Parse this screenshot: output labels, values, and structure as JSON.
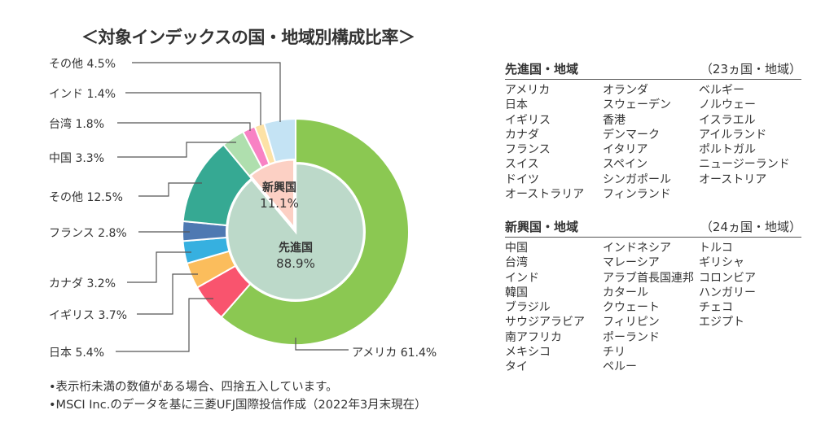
{
  "title": "＜対象インデックスの国・地域別構成比率＞",
  "chart_data": {
    "type": "pie",
    "title": "＜対象インデックスの国・地域別構成比率＞",
    "inner": [
      {
        "name": "先進国",
        "value": 88.9,
        "label": "88.9%",
        "color": "#bcd9c9"
      },
      {
        "name": "新興国",
        "value": 11.1,
        "label": "11.1%",
        "color": "#fcd0c4"
      }
    ],
    "outer": [
      {
        "name": "アメリカ",
        "value": 61.4,
        "label": "アメリカ 61.4%",
        "color": "#8bc852",
        "group": "先進国"
      },
      {
        "name": "日本",
        "value": 5.4,
        "label": "日本 5.4%",
        "color": "#f9546e",
        "group": "先進国"
      },
      {
        "name": "イギリス",
        "value": 3.7,
        "label": "イギリス 3.7%",
        "color": "#fbbd5c",
        "group": "先進国"
      },
      {
        "name": "カナダ",
        "value": 3.2,
        "label": "カナダ 3.2%",
        "color": "#36b0e0",
        "group": "先進国"
      },
      {
        "name": "フランス",
        "value": 2.8,
        "label": "フランス 2.8%",
        "color": "#4e79b2",
        "group": "先進国"
      },
      {
        "name": "その他",
        "value": 12.5,
        "label": "その他 12.5%",
        "color": "#36a993",
        "group": "先進国"
      },
      {
        "name": "中国",
        "value": 3.3,
        "label": "中国 3.3%",
        "color": "#afdfae",
        "group": "新興国"
      },
      {
        "name": "台湾",
        "value": 1.8,
        "label": "台湾 1.8%",
        "color": "#f882c4",
        "group": "新興国"
      },
      {
        "name": "インド",
        "value": 1.4,
        "label": "インド 1.4%",
        "color": "#fde2a6",
        "group": "新興国"
      },
      {
        "name": "その他",
        "value": 4.5,
        "label": "その他 4.5%",
        "color": "#c4e3f4",
        "group": "新興国"
      }
    ]
  },
  "developed": {
    "heading": "先進国・地域",
    "count": "（23ヵ国・地域）",
    "columns": [
      [
        "アメリカ",
        "日本",
        "イギリス",
        "カナダ",
        "フランス",
        "スイス",
        "ドイツ",
        "オーストラリア"
      ],
      [
        "オランダ",
        "スウェーデン",
        "香港",
        "デンマーク",
        "イタリア",
        "スペイン",
        "シンガポール",
        "フィンランド"
      ],
      [
        "ベルギー",
        "ノルウェー",
        "イスラエル",
        "アイルランド",
        "ポルトガル",
        "ニュージーランド",
        "オーストリア"
      ]
    ]
  },
  "emerging": {
    "heading": "新興国・地域",
    "count": "（24ヵ国・地域）",
    "columns": [
      [
        "中国",
        "台湾",
        "インド",
        "韓国",
        "ブラジル",
        "サウジアラビア",
        "南アフリカ",
        "メキシコ",
        "タイ"
      ],
      [
        "インドネシア",
        "マレーシア",
        "アラブ首長国連邦",
        "カタール",
        "クウェート",
        "フィリピン",
        "ポーランド",
        "チリ",
        "ペルー"
      ],
      [
        "トルコ",
        "ギリシャ",
        "コロンビア",
        "ハンガリー",
        "チェコ",
        "エジプト"
      ]
    ]
  },
  "notes": [
    "•表示桁未満の数値がある場合、四捨五入しています。",
    "•MSCI Inc.のデータを基に三菱UFJ国際投信作成（2022年3月末現在）"
  ]
}
